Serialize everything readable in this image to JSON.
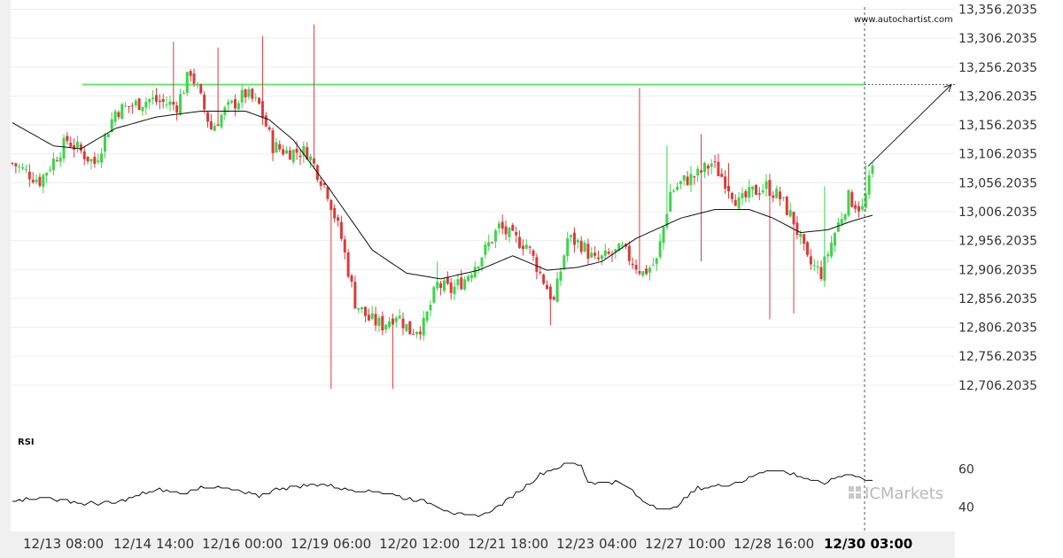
{
  "source_url": "www.autochartist.com",
  "brand": "ICMarkets",
  "rsi_panel_label": "RSI",
  "colors": {
    "up": "#3ed44a",
    "down": "#dc3a3a",
    "resistance": "#5ee86a",
    "ma": "#111111",
    "grid": "#ededed",
    "axis_bg": "#f0f0f0"
  },
  "chart_data": {
    "type": "candlestick",
    "y_ticks": [
      "13,356.2035",
      "13,306.2035",
      "13,256.2035",
      "13,206.2035",
      "13,156.2035",
      "13,106.2035",
      "13,056.2035",
      "13,006.2035",
      "12,956.2035",
      "12,906.2035",
      "12,856.2035",
      "12,806.2035",
      "12,756.2035",
      "12,706.2035"
    ],
    "ylim": [
      12680,
      13360
    ],
    "x_ticks": [
      "12/13 08:00",
      "12/14 14:00",
      "12/16 00:00",
      "12/19 06:00",
      "12/20 12:00",
      "12/21 18:00",
      "12/23 04:00",
      "12/27 10:00",
      "12/28 16:00",
      "12/30 03:00"
    ],
    "resistance_level": 13226,
    "projection_target": 13226,
    "moving_average_keypoints": [
      [
        0,
        13160
      ],
      [
        12,
        13120
      ],
      [
        20,
        13115
      ],
      [
        30,
        13150
      ],
      [
        42,
        13170
      ],
      [
        55,
        13180
      ],
      [
        68,
        13180
      ],
      [
        75,
        13165
      ],
      [
        82,
        13130
      ],
      [
        92,
        13050
      ],
      [
        105,
        12940
      ],
      [
        115,
        12900
      ],
      [
        125,
        12890
      ],
      [
        136,
        12905
      ],
      [
        146,
        12930
      ],
      [
        156,
        12905
      ],
      [
        165,
        12910
      ],
      [
        172,
        12920
      ],
      [
        182,
        12960
      ],
      [
        195,
        12995
      ],
      [
        205,
        13010
      ],
      [
        215,
        13010
      ],
      [
        222,
        12995
      ],
      [
        230,
        12970
      ],
      [
        238,
        12975
      ],
      [
        245,
        12990
      ],
      [
        251,
        13000
      ]
    ],
    "candles_series": {
      "count": 252,
      "close_keypoints": [
        [
          0,
          13090
        ],
        [
          8,
          13060
        ],
        [
          16,
          13130
        ],
        [
          24,
          13090
        ],
        [
          30,
          13180
        ],
        [
          40,
          13200
        ],
        [
          48,
          13190
        ],
        [
          52,
          13250
        ],
        [
          58,
          13150
        ],
        [
          62,
          13180
        ],
        [
          68,
          13210
        ],
        [
          72,
          13190
        ],
        [
          76,
          13120
        ],
        [
          80,
          13110
        ],
        [
          86,
          13110
        ],
        [
          92,
          13040
        ],
        [
          96,
          12960
        ],
        [
          100,
          12850
        ],
        [
          104,
          12820
        ],
        [
          108,
          12810
        ],
        [
          112,
          12830
        ],
        [
          116,
          12800
        ],
        [
          120,
          12810
        ],
        [
          124,
          12880
        ],
        [
          128,
          12870
        ],
        [
          132,
          12890
        ],
        [
          138,
          12940
        ],
        [
          142,
          12980
        ],
        [
          146,
          12960
        ],
        [
          150,
          12950
        ],
        [
          154,
          12900
        ],
        [
          158,
          12850
        ],
        [
          162,
          12960
        ],
        [
          166,
          12950
        ],
        [
          170,
          12920
        ],
        [
          174,
          12930
        ],
        [
          178,
          12940
        ],
        [
          184,
          12900
        ],
        [
          188,
          12920
        ],
        [
          192,
          13040
        ],
        [
          196,
          13060
        ],
        [
          200,
          13070
        ],
        [
          204,
          13090
        ],
        [
          208,
          13060
        ],
        [
          212,
          13020
        ],
        [
          216,
          13040
        ],
        [
          220,
          13050
        ],
        [
          224,
          13030
        ],
        [
          228,
          12990
        ],
        [
          232,
          12920
        ],
        [
          236,
          12900
        ],
        [
          240,
          12970
        ],
        [
          244,
          13030
        ],
        [
          248,
          13010
        ],
        [
          251,
          13080
        ]
      ],
      "high_spikes": [
        [
          47,
          13300
        ],
        [
          60,
          13290
        ],
        [
          73,
          13310
        ],
        [
          88,
          13330
        ],
        [
          124,
          12920
        ],
        [
          183,
          13220
        ],
        [
          191,
          13120
        ],
        [
          201,
          13140
        ],
        [
          209,
          13090
        ],
        [
          237,
          13050
        ],
        [
          249,
          13090
        ]
      ],
      "low_spikes": [
        [
          111,
          12700
        ],
        [
          93,
          12700
        ],
        [
          157,
          12810
        ],
        [
          221,
          12820
        ],
        [
          228,
          12830
        ],
        [
          201,
          12920
        ]
      ]
    },
    "rsi": {
      "ylim": [
        30,
        70
      ],
      "y_ticks": [
        "60",
        "40"
      ],
      "keypoints": [
        [
          0,
          44
        ],
        [
          10,
          45
        ],
        [
          20,
          42
        ],
        [
          30,
          42
        ],
        [
          38,
          47
        ],
        [
          44,
          49
        ],
        [
          50,
          47
        ],
        [
          56,
          51
        ],
        [
          62,
          50
        ],
        [
          66,
          48
        ],
        [
          72,
          46
        ],
        [
          78,
          50
        ],
        [
          84,
          51
        ],
        [
          90,
          52
        ],
        [
          96,
          50
        ],
        [
          100,
          49
        ],
        [
          108,
          48
        ],
        [
          114,
          45
        ],
        [
          118,
          44
        ],
        [
          122,
          42
        ],
        [
          126,
          39
        ],
        [
          130,
          36
        ],
        [
          134,
          35
        ],
        [
          138,
          36
        ],
        [
          142,
          41
        ],
        [
          146,
          46
        ],
        [
          150,
          51
        ],
        [
          154,
          57
        ],
        [
          158,
          60
        ],
        [
          162,
          63
        ],
        [
          166,
          62
        ],
        [
          168,
          53
        ],
        [
          176,
          53
        ],
        [
          180,
          50
        ],
        [
          184,
          43
        ],
        [
          188,
          40
        ],
        [
          192,
          38
        ],
        [
          196,
          44
        ],
        [
          200,
          50
        ],
        [
          208,
          52
        ],
        [
          214,
          54
        ],
        [
          218,
          58
        ],
        [
          222,
          60
        ],
        [
          228,
          57
        ],
        [
          232,
          55
        ],
        [
          236,
          52
        ],
        [
          240,
          55
        ],
        [
          244,
          58
        ],
        [
          248,
          55
        ],
        [
          251,
          53
        ]
      ]
    }
  }
}
